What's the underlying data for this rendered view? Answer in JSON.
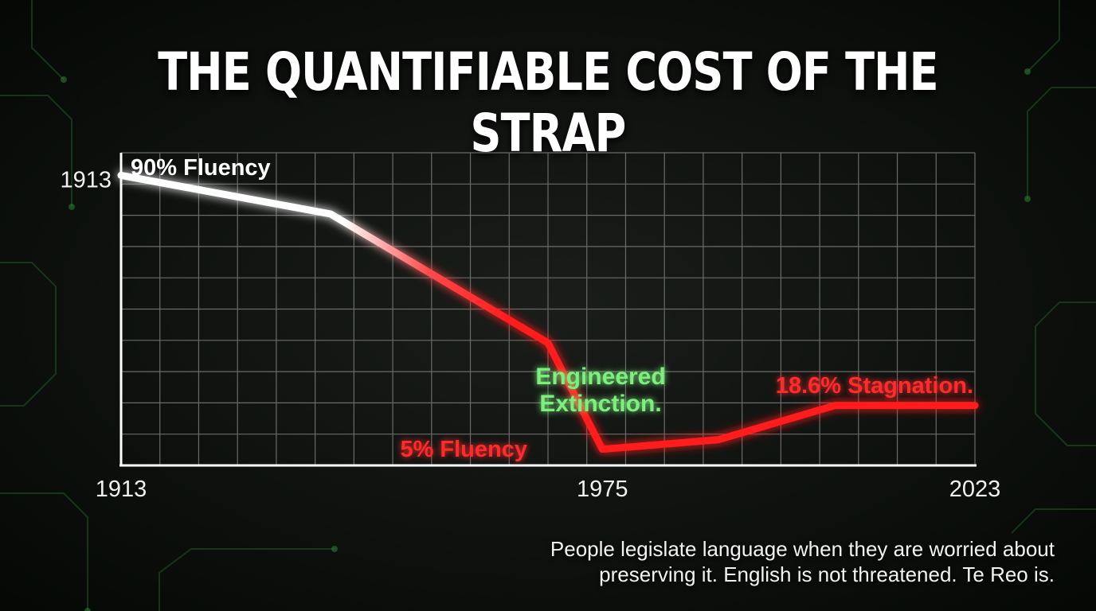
{
  "title": "THE QUANTIFIABLE COST OF THE STRAP",
  "chart_data": {
    "type": "line",
    "x": [
      1913,
      1940,
      1968,
      1975,
      1990,
      2005,
      2023
    ],
    "values": [
      90,
      78,
      38,
      5,
      8,
      18.6,
      18.6
    ],
    "x_tick_labels": [
      "1913",
      "1975",
      "2023"
    ],
    "x_tick_values": [
      1913,
      1975,
      2023
    ],
    "y_tick_labels": [
      "1913"
    ],
    "y_tick_values": [
      90
    ],
    "xlim": [
      1913,
      2023
    ],
    "ylim": [
      0,
      97
    ],
    "grid": true,
    "annotations": [
      {
        "text": "90% Fluency",
        "x": 1913,
        "y": 90,
        "color": "#ffffff"
      },
      {
        "text": "5% Fluency",
        "x": 1975,
        "y": 5,
        "color": "#ff2a2a"
      },
      {
        "text": "Engineered",
        "x": 1975,
        "y": 22,
        "color": "#7cf07c"
      },
      {
        "text": "Extinction.",
        "x": 1975,
        "y": 22,
        "color": "#7cf07c"
      },
      {
        "text": "18.6% Stagnation.",
        "x": 2023,
        "y": 18.6,
        "color": "#ff2a2a"
      }
    ],
    "colors": {
      "start": "#ffffff",
      "end": "#ff1a1a",
      "grid": "#6a6a6a",
      "axis": "#ffffff"
    }
  },
  "caption": {
    "line1": "People legislate language when they are worried about",
    "line2": "preserving it. English is not threatened. Te Reo is."
  }
}
